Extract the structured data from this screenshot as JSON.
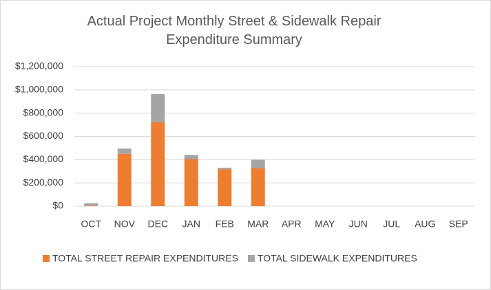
{
  "chart_data": {
    "type": "stacked_bar",
    "title": "Actual Project Monthly Street & Sidewalk Repair Expenditure Summary",
    "categories": [
      "OCT",
      "NOV",
      "DEC",
      "JAN",
      "FEB",
      "MAR",
      "APR",
      "MAY",
      "JUN",
      "JUL",
      "AUG",
      "SEP"
    ],
    "series": [
      {
        "name": "TOTAL STREET REPAIR EXPENDITURES",
        "color": "#ed7d31",
        "values": [
          5000,
          450000,
          722000,
          405000,
          318000,
          325000,
          null,
          null,
          null,
          null,
          null,
          null
        ]
      },
      {
        "name": "TOTAL SIDEWALK EXPENDITURES",
        "color": "#a5a5a5",
        "values": [
          20000,
          45000,
          242000,
          35000,
          13000,
          75000,
          null,
          null,
          null,
          null,
          null,
          null
        ]
      }
    ],
    "ylim": [
      0,
      1200000
    ],
    "yticks": [
      {
        "value": 0,
        "label": "$0"
      },
      {
        "value": 200000,
        "label": "$200,000"
      },
      {
        "value": 400000,
        "label": "$400,000"
      },
      {
        "value": 600000,
        "label": "$600,000"
      },
      {
        "value": 800000,
        "label": "$800,000"
      },
      {
        "value": 1000000,
        "label": "$1,000,000"
      },
      {
        "value": 1200000,
        "label": "$1,200,000"
      }
    ],
    "grid": true,
    "legend": "bottom"
  }
}
